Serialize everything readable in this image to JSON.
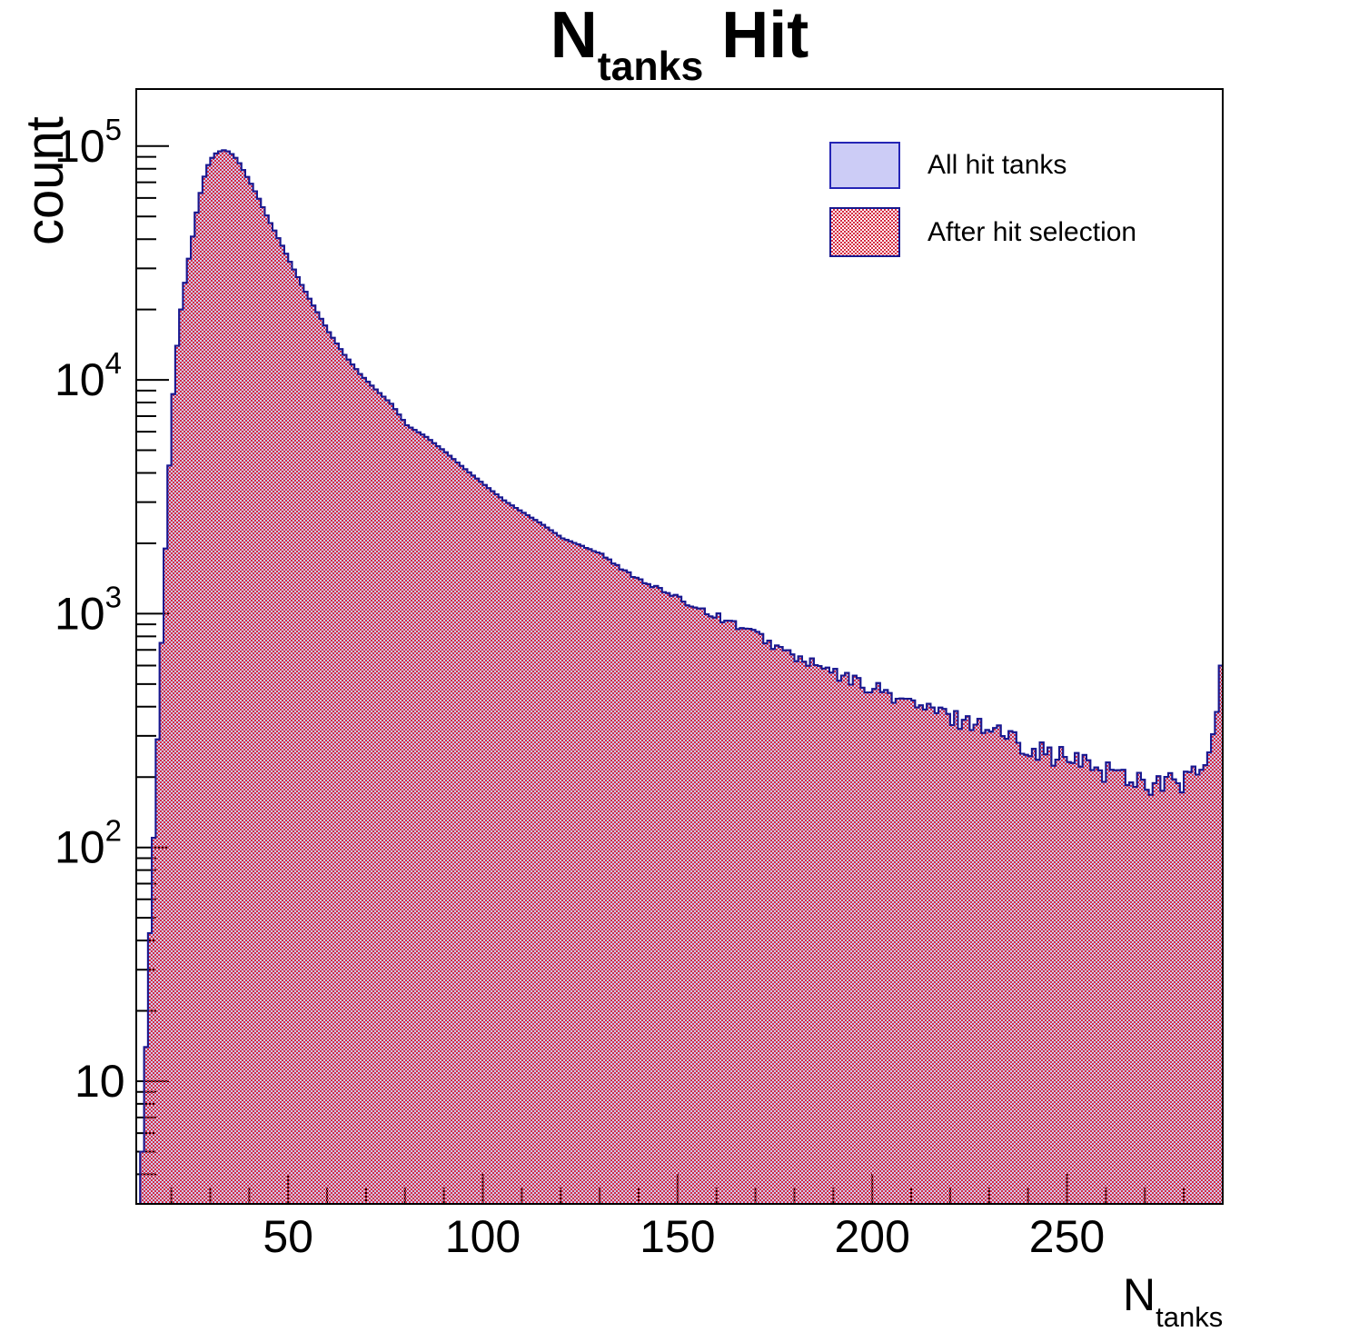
{
  "page": {
    "background": "#ffffff"
  },
  "title": {
    "main": "N",
    "sub": "tanks",
    "rest": " Hit"
  },
  "y_axis": {
    "title": "count",
    "tick_base": "10",
    "decades": [
      1,
      2,
      3,
      4,
      5
    ],
    "minor_low": 4,
    "minor_high": 170000
  },
  "x_axis": {
    "title_main": "N",
    "title_sub": "tanks",
    "ticks": [
      50,
      100,
      150,
      200,
      250
    ],
    "minor_step": 10,
    "minor_from": 20,
    "minor_to": 280,
    "range": [
      11,
      290
    ]
  },
  "legend": {
    "items": [
      {
        "label": "All hit tanks",
        "swatch": "lavender-solid"
      },
      {
        "label": "After hit selection",
        "swatch": "red-hatch"
      }
    ]
  },
  "colors": {
    "hist_outline": "#2525b5",
    "hist_fill": "#ccccf6",
    "hatch_red": "#d62b42",
    "hatch_outline": "#19198f",
    "frame": "#000000",
    "text": "#000000",
    "background": "#ffffff"
  },
  "chart_data": {
    "type": "bar",
    "subtype": "step-histogram-overlay",
    "title": "N_tanks Hit",
    "xlabel": "N_tanks",
    "ylabel": "count",
    "x_range": [
      11,
      290
    ],
    "y_scale": "log",
    "ylim": [
      3,
      175000
    ],
    "bin_width": 1,
    "grid": false,
    "legend_position": "top-right",
    "series": [
      {
        "name": "All hit tanks",
        "style": "solid light-blue fill, blue outline"
      },
      {
        "name": "After hit selection",
        "style": "fine red checker hatch fill, dark-blue outline",
        "note": "coincides with 'All hit tanks' within line width over the whole range"
      }
    ],
    "peak": {
      "x": 33,
      "count": 96000
    },
    "last_bin_spike": {
      "x": 289,
      "count": 600
    },
    "noise": {
      "applies_above_x": 126,
      "max_fraction": 0.13
    },
    "anchors_x_count": [
      [
        12,
        5
      ],
      [
        13,
        14
      ],
      [
        14,
        43
      ],
      [
        15,
        110
      ],
      [
        16,
        290
      ],
      [
        17,
        750
      ],
      [
        18,
        1900
      ],
      [
        19,
        4300
      ],
      [
        20,
        8700
      ],
      [
        21,
        14000
      ],
      [
        22,
        20000
      ],
      [
        23,
        26000
      ],
      [
        24,
        33000
      ],
      [
        25,
        41000
      ],
      [
        26,
        52000
      ],
      [
        27,
        63000
      ],
      [
        28,
        74000
      ],
      [
        29,
        83000
      ],
      [
        30,
        89000
      ],
      [
        31,
        93000
      ],
      [
        32,
        95000
      ],
      [
        33,
        96000
      ],
      [
        34,
        95000
      ],
      [
        35,
        92500
      ],
      [
        36,
        89000
      ],
      [
        37,
        84500
      ],
      [
        38,
        79000
      ],
      [
        40,
        69000
      ],
      [
        42,
        59500
      ],
      [
        44,
        50500
      ],
      [
        46,
        43500
      ],
      [
        48,
        37500
      ],
      [
        50,
        32000
      ],
      [
        53,
        25500
      ],
      [
        56,
        20800
      ],
      [
        60,
        16000
      ],
      [
        64,
        12800
      ],
      [
        68,
        10600
      ],
      [
        72,
        9100
      ],
      [
        76,
        7900
      ],
      [
        80,
        6400
      ],
      [
        85,
        5700
      ],
      [
        90,
        4900
      ],
      [
        95,
        4150
      ],
      [
        100,
        3550
      ],
      [
        105,
        3050
      ],
      [
        110,
        2700
      ],
      [
        115,
        2400
      ],
      [
        120,
        2100
      ],
      [
        125,
        1950
      ],
      [
        130,
        1800
      ],
      [
        135,
        1550
      ],
      [
        140,
        1400
      ],
      [
        145,
        1270
      ],
      [
        150,
        1150
      ],
      [
        155,
        1060
      ],
      [
        160,
        970
      ],
      [
        165,
        890
      ],
      [
        170,
        810
      ],
      [
        175,
        720
      ],
      [
        180,
        650
      ],
      [
        185,
        600
      ],
      [
        190,
        550
      ],
      [
        195,
        515
      ],
      [
        200,
        480
      ],
      [
        205,
        445
      ],
      [
        210,
        410
      ],
      [
        215,
        385
      ],
      [
        220,
        360
      ],
      [
        225,
        345
      ],
      [
        230,
        325
      ],
      [
        235,
        295
      ],
      [
        240,
        272
      ],
      [
        245,
        252
      ],
      [
        250,
        237
      ],
      [
        255,
        226
      ],
      [
        260,
        214
      ],
      [
        265,
        202
      ],
      [
        270,
        192
      ],
      [
        275,
        186
      ],
      [
        280,
        196
      ],
      [
        283,
        205
      ],
      [
        285,
        225
      ],
      [
        286,
        255
      ],
      [
        287,
        305
      ],
      [
        288,
        380
      ],
      [
        289,
        600
      ]
    ]
  }
}
